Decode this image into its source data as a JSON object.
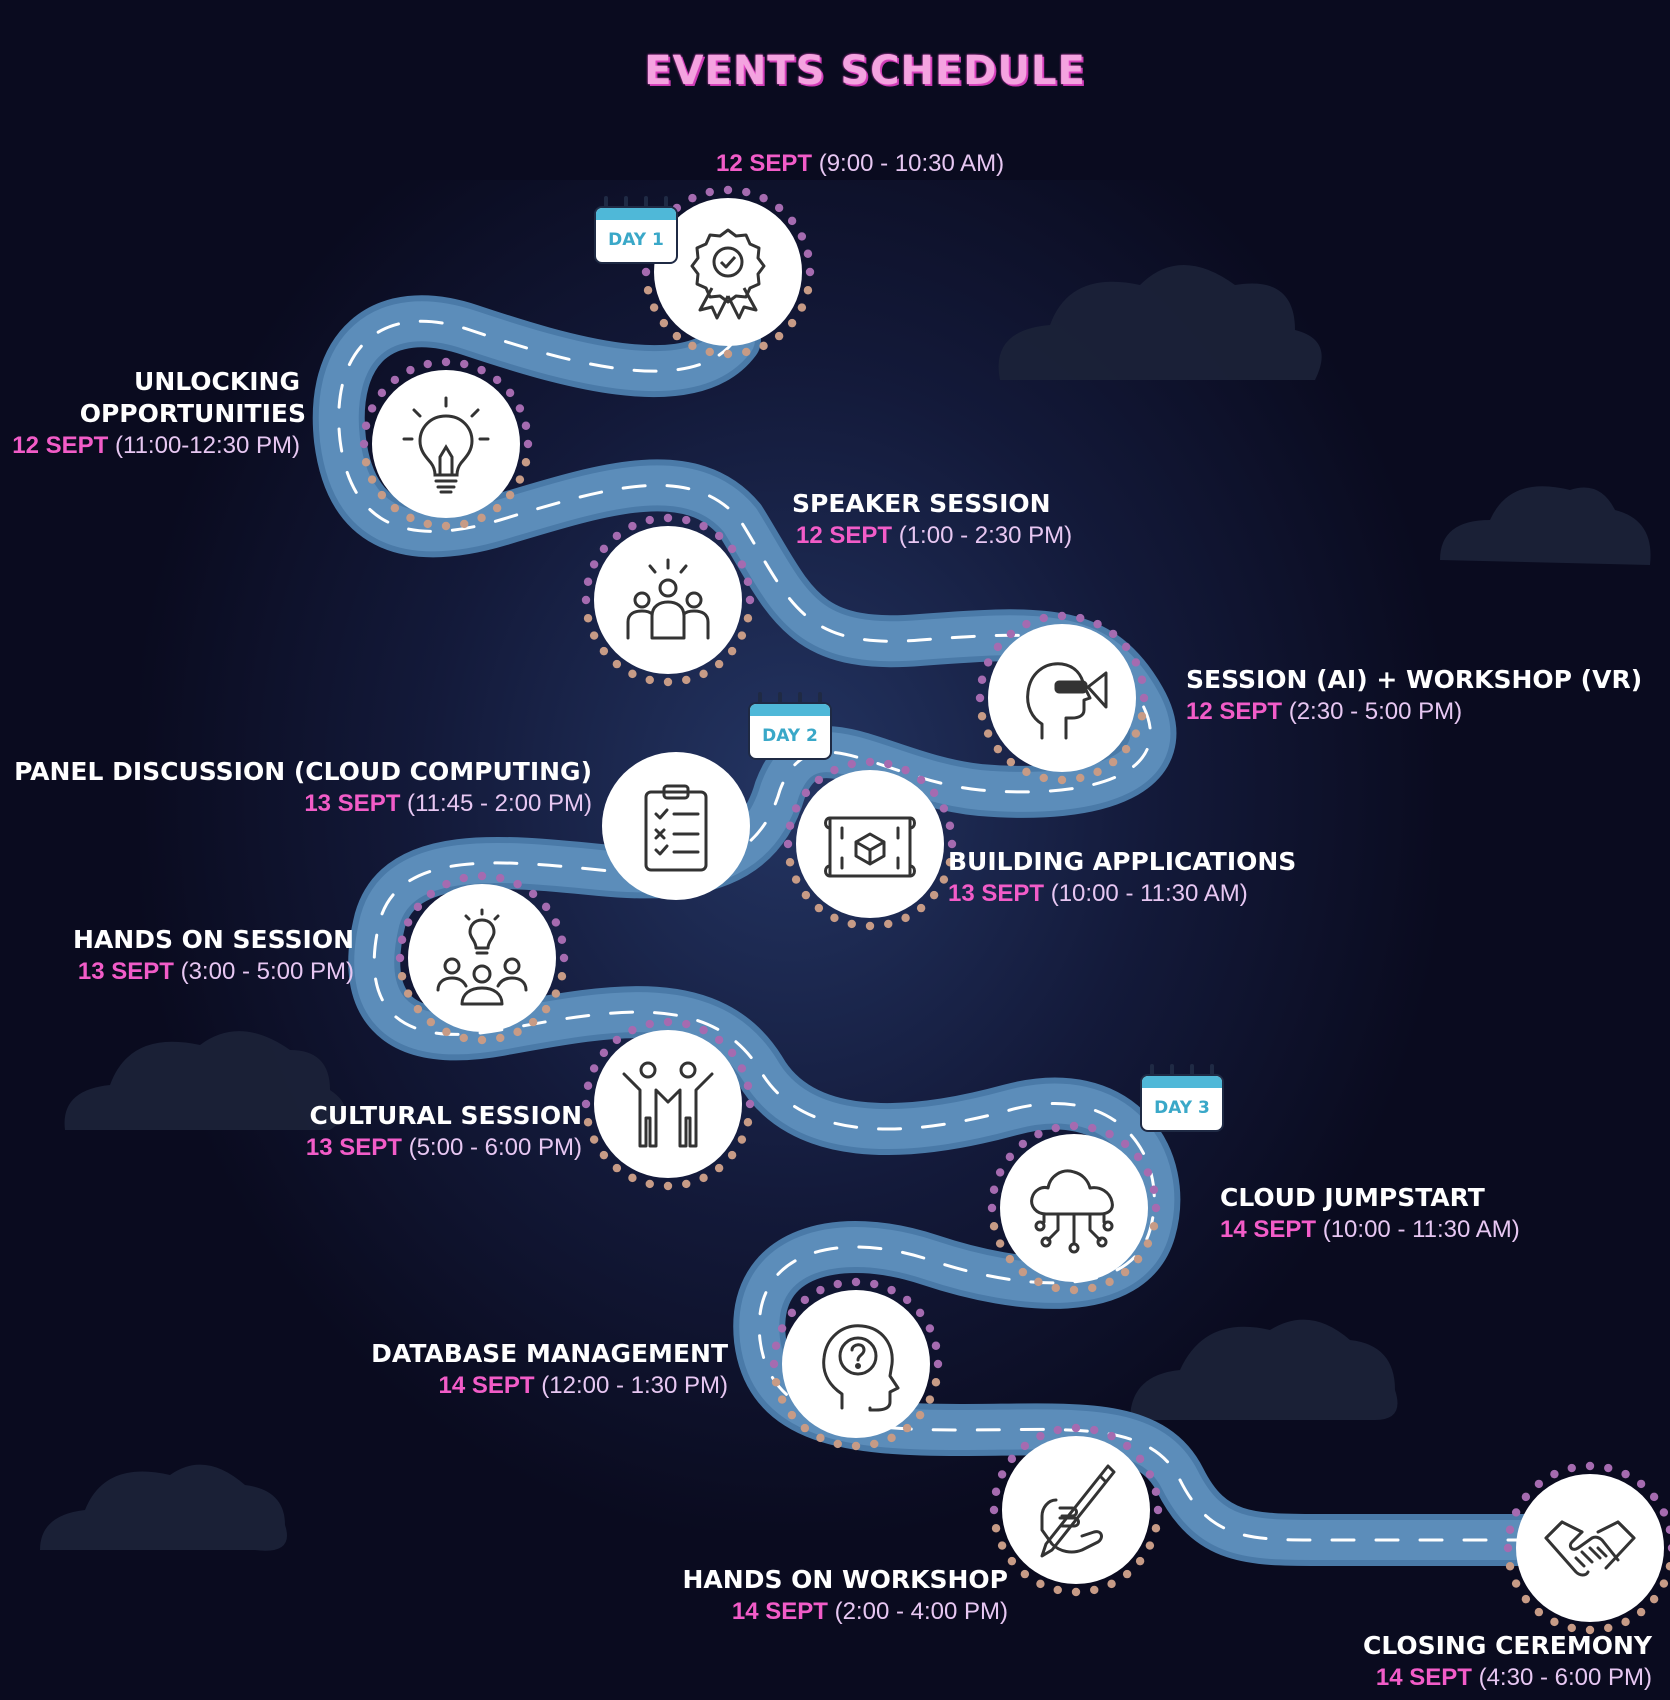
{
  "title": "EVENTS SCHEDULE",
  "colors": {
    "background": "#0a0b1f",
    "road": "#4a7aa8",
    "date_pink": "#f25cc8",
    "title_pink": "#f4a3e0",
    "calendar_teal": "#4fb8d8"
  },
  "calendars": {
    "day1": "DAY 1",
    "day2": "DAY 2",
    "day3": "DAY 3"
  },
  "events": [
    {
      "name": "",
      "date": "12 SEPT",
      "time": "(9:00 - 10:30 AM)",
      "icon": "award-badge-icon"
    },
    {
      "name_line1": "UNLOCKING",
      "name_line2": "OPPORTUNITIES",
      "date": "12 SEPT",
      "time": "(11:00-12:30 PM)",
      "icon": "lightbulb-icon"
    },
    {
      "name": "SPEAKER SESSION",
      "date": "12 SEPT",
      "time": "(1:00 - 2:30 PM)",
      "icon": "group-icon"
    },
    {
      "name": "SESSION (AI) + WORKSHOP (VR)",
      "date": "12 SEPT",
      "time": "(2:30 - 5:00 PM)",
      "icon": "vr-head-icon"
    },
    {
      "name": "PANEL DISCUSSION (CLOUD COMPUTING)",
      "date": "13 SEPT",
      "time": "(11:45 - 2:00 PM)",
      "icon": "clipboard-checklist-icon"
    },
    {
      "name": "BUILDING APPLICATIONS",
      "date": "13 SEPT",
      "time": "(10:00 - 11:30 AM)",
      "icon": "blueprint-cube-icon"
    },
    {
      "name": "HANDS ON SESSION",
      "date": "13 SEPT",
      "time": "(3:00 - 5:00 PM)",
      "icon": "team-idea-icon"
    },
    {
      "name": "CULTURAL SESSION",
      "date": "13 SEPT",
      "time": "(5:00 - 6:00  PM)",
      "icon": "dancing-people-icon"
    },
    {
      "name": "CLOUD JUMPSTART",
      "date": "14 SEPT",
      "time": "(10:00 - 11:30 AM)",
      "icon": "cloud-network-icon"
    },
    {
      "name": "DATABASE MANAGEMENT",
      "date": "14 SEPT",
      "time": "(12:00 - 1:30 PM)",
      "icon": "head-question-icon"
    },
    {
      "name": "HANDS ON WORKSHOP",
      "date": "14 SEPT",
      "time": "(2:00 - 4:00 PM)",
      "icon": "hand-pen-icon"
    },
    {
      "name": "CLOSING CEREMONY",
      "date": "14 SEPT",
      "time": "(4:30 - 6:00 PM)",
      "icon": "handshake-icon"
    }
  ]
}
